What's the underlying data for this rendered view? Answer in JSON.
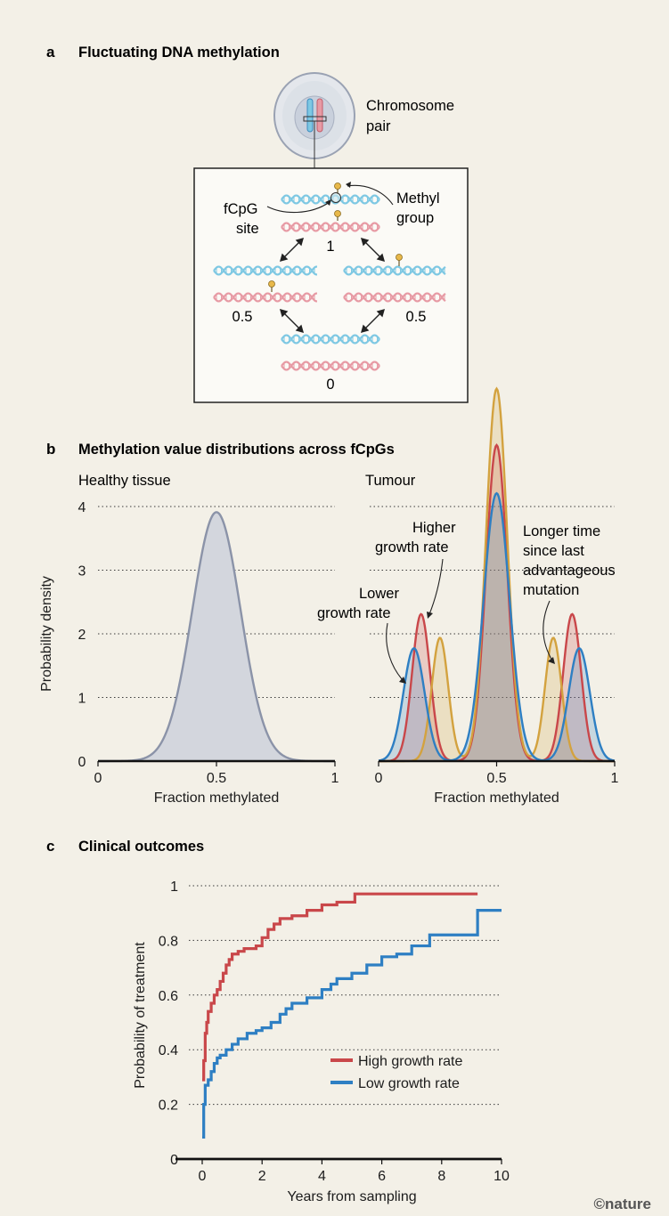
{
  "panel_a": {
    "letter": "a",
    "title": "Fluctuating DNA methylation",
    "chromosome_label_1": "Chromosome",
    "chromosome_label_2": "pair",
    "methyl_label_1": "Methyl",
    "methyl_label_2": "group",
    "fcpg_label_1": "fCpG",
    "fcpg_label_2": "site",
    "state_top": "1",
    "state_left": "0.5",
    "state_right": "0.5",
    "state_bottom": "0"
  },
  "panel_b": {
    "letter": "b",
    "title": "Methylation value distributions across fCpGs",
    "left_title": "Healthy tissue",
    "right_title": "Tumour",
    "ann_higher_1": "Higher",
    "ann_higher_2": "growth rate",
    "ann_lower_1": "Lower",
    "ann_lower_2": "growth rate",
    "ann_longer_1": "Longer time",
    "ann_longer_2": "since last",
    "ann_longer_3": "advantageous",
    "ann_longer_4": "mutation"
  },
  "panel_c": {
    "letter": "c",
    "title": "Clinical outcomes"
  },
  "credit": "©nature",
  "colors": {
    "background": "#f3f0e7",
    "healthy_fill": "#d3d6dd",
    "healthy_line": "#8b93a8",
    "red": "#c9474a",
    "blue": "#2e7fc3",
    "gold": "#d3a23f",
    "dna_blue": "#7ec8e3",
    "dna_pink": "#e79aa4",
    "methyl": "#e8b84a"
  },
  "chart_data": [
    {
      "type": "area",
      "name": "Healthy tissue",
      "xlabel": "Fraction methylated",
      "ylabel": "Probability density",
      "xlim": [
        0,
        1
      ],
      "ylim": [
        0,
        4
      ],
      "xticks": [
        "0",
        "0.5",
        "1"
      ],
      "yticks": [
        "0",
        "1",
        "2",
        "3",
        "4"
      ],
      "grid": true,
      "series": [
        {
          "components": [
            [
              0.5,
              0.102,
              1.0
            ]
          ]
        }
      ]
    },
    {
      "type": "area",
      "name": "Tumour",
      "xlabel": "Fraction methylated",
      "ylabel": "",
      "xlim": [
        0,
        1
      ],
      "ylim": [
        0,
        4
      ],
      "xticks": [
        "0",
        "0.5",
        "1"
      ],
      "grid": true,
      "series": [
        {
          "color": "#c9474a",
          "components": [
            [
              0.18,
              0.038,
              0.22
            ],
            [
              0.5,
              0.045,
              0.56
            ],
            [
              0.82,
              0.038,
              0.22
            ]
          ]
        },
        {
          "color": "#d3a23f",
          "components": [
            [
              0.26,
              0.035,
              0.17
            ],
            [
              0.5,
              0.045,
              0.66
            ],
            [
              0.74,
              0.035,
              0.17
            ]
          ]
        },
        {
          "color": "#2e7fc3",
          "components": [
            [
              0.15,
              0.045,
              0.2
            ],
            [
              0.5,
              0.055,
              0.58
            ],
            [
              0.85,
              0.045,
              0.2
            ]
          ]
        }
      ]
    },
    {
      "type": "line",
      "step": true,
      "name": "Clinical outcomes",
      "xlabel": "Years from sampling",
      "ylabel": "Probability of treatment",
      "xlim": [
        0,
        10
      ],
      "ylim": [
        0,
        1
      ],
      "xticks": [
        "0",
        "2",
        "4",
        "6",
        "8",
        "10"
      ],
      "yticks": [
        "0",
        "0.2",
        "0.4",
        "0.6",
        "0.8",
        "1"
      ],
      "grid": true,
      "legend": "bottom-right",
      "series": [
        {
          "name": "High growth rate",
          "color": "#c9474a",
          "x": [
            0,
            0.05,
            0.1,
            0.15,
            0.2,
            0.3,
            0.4,
            0.5,
            0.6,
            0.7,
            0.8,
            0.9,
            1.0,
            1.2,
            1.4,
            1.6,
            1.8,
            2.0,
            2.2,
            2.4,
            2.6,
            3.0,
            3.5,
            4.0,
            4.5,
            5.1,
            6.0,
            7.0,
            8.0,
            9.2
          ],
          "y": [
            0.29,
            0.36,
            0.46,
            0.5,
            0.54,
            0.57,
            0.6,
            0.62,
            0.65,
            0.68,
            0.71,
            0.73,
            0.75,
            0.76,
            0.77,
            0.77,
            0.78,
            0.81,
            0.84,
            0.86,
            0.88,
            0.89,
            0.91,
            0.93,
            0.94,
            0.97,
            0.97,
            0.97,
            0.97,
            0.97
          ]
        },
        {
          "name": "Low growth rate",
          "color": "#2e7fc3",
          "x": [
            0,
            0.05,
            0.1,
            0.2,
            0.3,
            0.4,
            0.5,
            0.6,
            0.8,
            1.0,
            1.2,
            1.5,
            1.8,
            2.0,
            2.3,
            2.6,
            2.8,
            3.0,
            3.5,
            4.0,
            4.3,
            4.5,
            5.0,
            5.5,
            6.0,
            6.5,
            7.0,
            7.6,
            8.0,
            9.2,
            10.0
          ],
          "y": [
            0.08,
            0.2,
            0.27,
            0.29,
            0.32,
            0.35,
            0.37,
            0.38,
            0.4,
            0.42,
            0.44,
            0.46,
            0.47,
            0.48,
            0.5,
            0.53,
            0.55,
            0.57,
            0.59,
            0.62,
            0.64,
            0.66,
            0.68,
            0.71,
            0.74,
            0.75,
            0.78,
            0.82,
            0.82,
            0.91,
            0.91
          ]
        }
      ]
    }
  ]
}
